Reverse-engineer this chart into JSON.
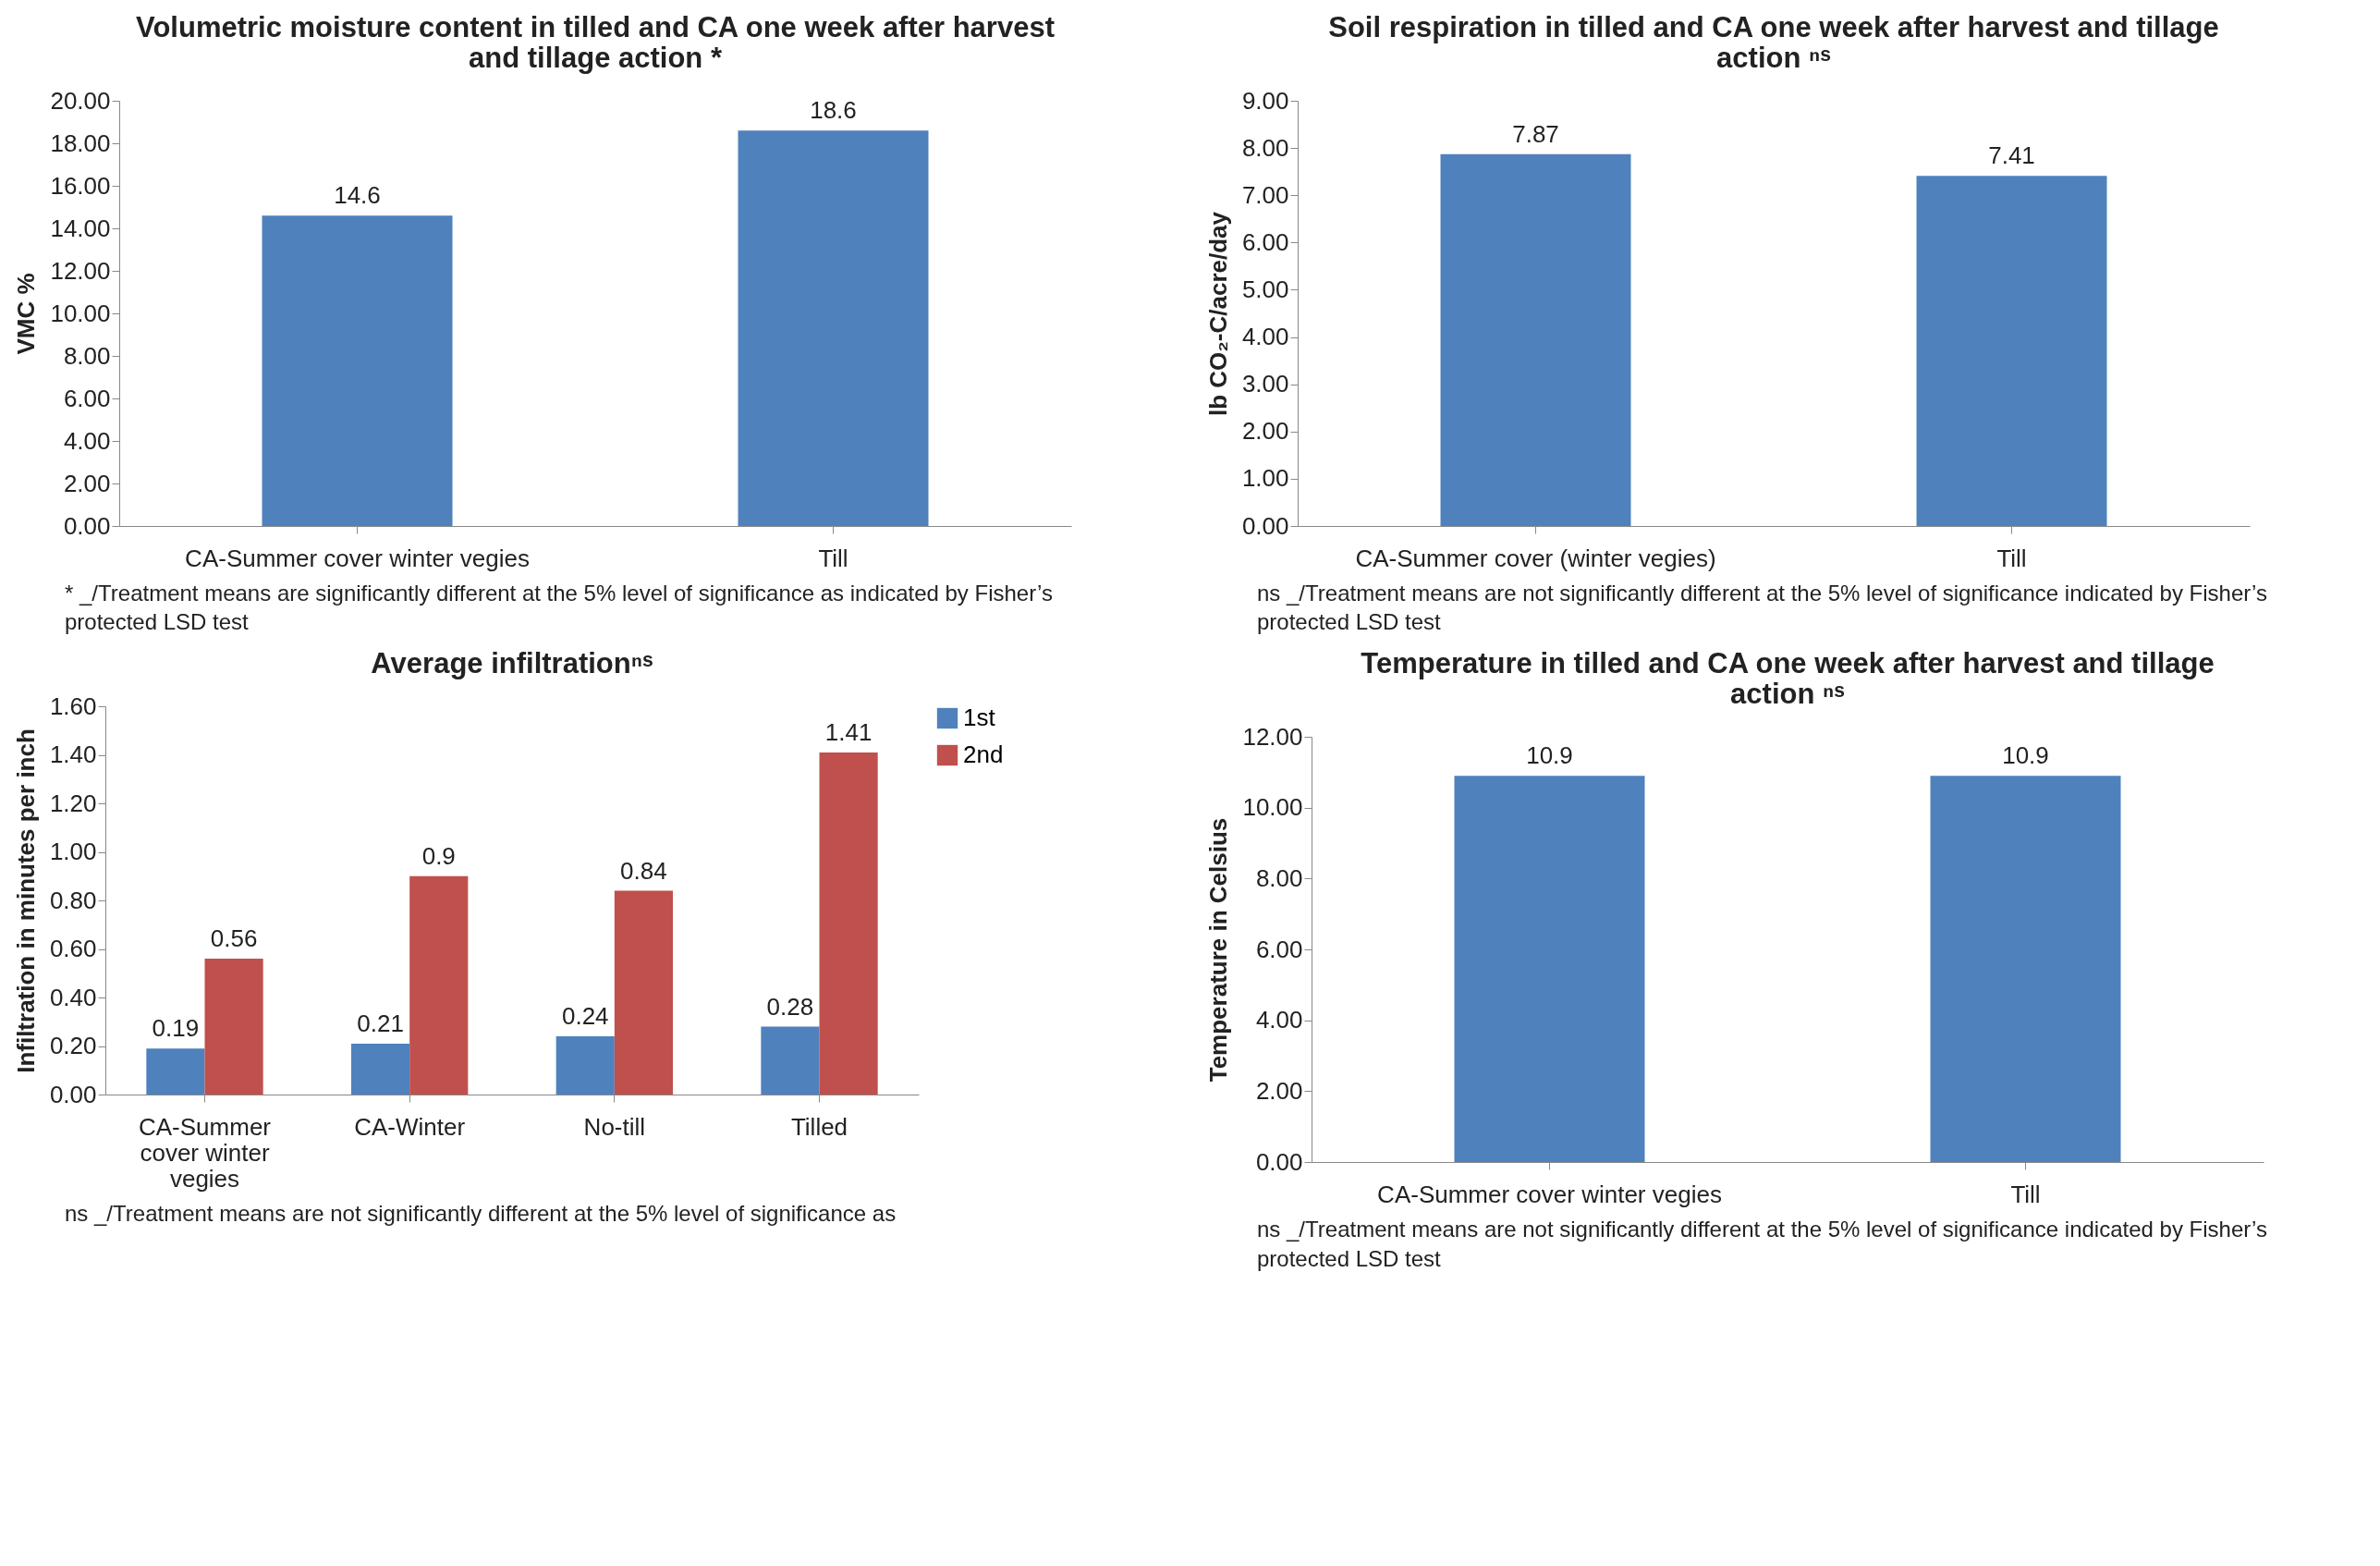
{
  "chart_data": [
    {
      "type": "bar",
      "title": "Volumetric moisture content in tilled and CA one week after harvest and tillage action *",
      "ylabel": "VMC %",
      "categories": [
        "CA-Summer cover winter vegies",
        "Till"
      ],
      "series": [
        {
          "color": "#4f81bd",
          "values": [
            14.6,
            18.6
          ]
        }
      ],
      "ylim": [
        0,
        20
      ],
      "yticks": [
        {
          "value": 0,
          "label": "0.00"
        },
        {
          "value": 2,
          "label": "2.00"
        },
        {
          "value": 4,
          "label": "4.00"
        },
        {
          "value": 6,
          "label": "6.00"
        },
        {
          "value": 8,
          "label": "8.00"
        },
        {
          "value": 10,
          "label": "10.00"
        },
        {
          "value": 12,
          "label": "12.00"
        },
        {
          "value": 14,
          "label": "14.00"
        },
        {
          "value": 16,
          "label": "16.00"
        },
        {
          "value": 18,
          "label": "18.00"
        },
        {
          "value": 20,
          "label": "20.00"
        }
      ],
      "data_labels": true,
      "annotations": [
        "* _/Treatment means are  significantly different at the 5% level of significance as indicated by Fisher’s  protected LSD test"
      ]
    },
    {
      "type": "bar",
      "title": "Soil respiration in tilled and CA one week after harvest and tillage action ⁿˢ",
      "ylabel": "lb CO₂-C/acre/day",
      "categories": [
        "CA-Summer cover (winter vegies)",
        "Till"
      ],
      "series": [
        {
          "color": "#4f81bd",
          "values": [
            7.87,
            7.41
          ]
        }
      ],
      "ylim": [
        0,
        9
      ],
      "yticks": [
        {
          "value": 0,
          "label": "0.00"
        },
        {
          "value": 1,
          "label": "1.00"
        },
        {
          "value": 2,
          "label": "2.00"
        },
        {
          "value": 3,
          "label": "3.00"
        },
        {
          "value": 4,
          "label": "4.00"
        },
        {
          "value": 5,
          "label": "5.00"
        },
        {
          "value": 6,
          "label": "6.00"
        },
        {
          "value": 7,
          "label": "7.00"
        },
        {
          "value": 8,
          "label": "8.00"
        },
        {
          "value": 9,
          "label": "9.00"
        }
      ],
      "data_labels": true,
      "annotations": [
        "ns _/Treatment means are not significantly different at the 5% level of significance indicated by Fisher’s  protected LSD test"
      ]
    },
    {
      "type": "bar",
      "title": "Average infiltrationⁿˢ",
      "ylabel": "Infiltration in minutes per inch",
      "categories": [
        "CA-Summer cover winter vegies",
        "CA-Winter",
        "No-till",
        "Tilled"
      ],
      "series": [
        {
          "name": "1st",
          "color": "#4f81bd",
          "values": [
            0.19,
            0.21,
            0.24,
            0.28
          ]
        },
        {
          "name": "2nd",
          "color": "#c0504d",
          "values": [
            0.56,
            0.9,
            0.84,
            1.41
          ]
        }
      ],
      "ylim": [
        0,
        1.6
      ],
      "yticks": [
        {
          "value": 0,
          "label": "0.00"
        },
        {
          "value": 0.2,
          "label": "0.20"
        },
        {
          "value": 0.4,
          "label": "0.40"
        },
        {
          "value": 0.6,
          "label": "0.60"
        },
        {
          "value": 0.8,
          "label": "0.80"
        },
        {
          "value": 1,
          "label": "1.00"
        },
        {
          "value": 1.2,
          "label": "1.20"
        },
        {
          "value": 1.4,
          "label": "1.40"
        },
        {
          "value": 1.6,
          "label": "1.60"
        }
      ],
      "data_labels": true,
      "legend": "right",
      "annotations": [
        "ns _/Treatment means are not significantly different at the 5% level of significance as"
      ]
    },
    {
      "type": "bar",
      "title": "Temperature in tilled and CA one week after harvest and tillage action ⁿˢ",
      "ylabel": "Temperature in Celsius",
      "categories": [
        "CA-Summer cover winter vegies",
        "Till"
      ],
      "series": [
        {
          "color": "#4f81bd",
          "values": [
            10.9,
            10.9
          ]
        }
      ],
      "ylim": [
        0,
        12
      ],
      "yticks": [
        {
          "value": 0,
          "label": "0.00"
        },
        {
          "value": 2,
          "label": "2.00"
        },
        {
          "value": 4,
          "label": "4.00"
        },
        {
          "value": 6,
          "label": "6.00"
        },
        {
          "value": 8,
          "label": "8.00"
        },
        {
          "value": 10,
          "label": "10.00"
        },
        {
          "value": 12,
          "label": "12.00"
        }
      ],
      "data_labels": true,
      "annotations": [
        "ns _/Treatment means are  not significantly different at the 5% level of significance indicated by Fisher’s  protected LSD test"
      ]
    }
  ]
}
